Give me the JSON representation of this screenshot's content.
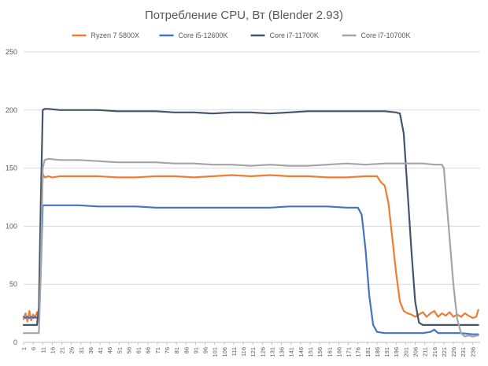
{
  "chart_data": {
    "type": "line",
    "title": "Потребление CPU, Вт (Blender 2.93)",
    "xlabel": "",
    "ylabel": "",
    "ylim": [
      0,
      250
    ],
    "yticks": [
      0,
      50,
      100,
      150,
      200,
      250
    ],
    "x_tick_labels": [
      "1",
      "6",
      "11",
      "16",
      "21",
      "26",
      "31",
      "36",
      "41",
      "46",
      "51",
      "56",
      "61",
      "66",
      "71",
      "76",
      "81",
      "86",
      "91",
      "96",
      "101",
      "106",
      "111",
      "116",
      "121",
      "126",
      "131",
      "136",
      "141",
      "146",
      "151",
      "156",
      "161",
      "166",
      "171",
      "176",
      "181",
      "186",
      "191",
      "196",
      "201",
      "206",
      "211",
      "216",
      "221",
      "226",
      "231",
      "236"
    ],
    "x_range": [
      1,
      240
    ],
    "grid": true,
    "legend_position": "top",
    "series": [
      {
        "name": "Ryzen 7 5800X",
        "color": "#ED7D31",
        "points": [
          [
            1,
            20
          ],
          [
            2,
            25
          ],
          [
            3,
            18
          ],
          [
            4,
            27
          ],
          [
            5,
            19
          ],
          [
            6,
            24
          ],
          [
            7,
            21
          ],
          [
            8,
            26
          ],
          [
            9,
            22
          ],
          [
            10,
            80
          ],
          [
            11,
            145
          ],
          [
            12,
            142
          ],
          [
            14,
            143
          ],
          [
            16,
            142
          ],
          [
            20,
            143
          ],
          [
            30,
            143
          ],
          [
            40,
            143
          ],
          [
            50,
            142
          ],
          [
            60,
            142
          ],
          [
            70,
            143
          ],
          [
            80,
            143
          ],
          [
            90,
            142
          ],
          [
            100,
            143
          ],
          [
            110,
            144
          ],
          [
            120,
            143
          ],
          [
            130,
            144
          ],
          [
            140,
            143
          ],
          [
            150,
            143
          ],
          [
            160,
            142
          ],
          [
            170,
            142
          ],
          [
            180,
            143
          ],
          [
            186,
            143
          ],
          [
            188,
            138
          ],
          [
            190,
            135
          ],
          [
            192,
            120
          ],
          [
            194,
            90
          ],
          [
            196,
            60
          ],
          [
            198,
            35
          ],
          [
            200,
            27
          ],
          [
            202,
            25
          ],
          [
            204,
            24
          ],
          [
            206,
            22
          ],
          [
            208,
            24
          ],
          [
            210,
            26
          ],
          [
            212,
            22
          ],
          [
            214,
            25
          ],
          [
            216,
            27
          ],
          [
            218,
            22
          ],
          [
            220,
            25
          ],
          [
            222,
            23
          ],
          [
            224,
            26
          ],
          [
            226,
            22
          ],
          [
            228,
            24
          ],
          [
            230,
            22
          ],
          [
            232,
            25
          ],
          [
            234,
            23
          ],
          [
            236,
            21
          ],
          [
            238,
            22
          ],
          [
            239,
            28
          ]
        ]
      },
      {
        "name": "Core i5-12600K",
        "color": "#4472C4",
        "points": [
          [
            1,
            22
          ],
          [
            2,
            21
          ],
          [
            3,
            22
          ],
          [
            4,
            21
          ],
          [
            5,
            22
          ],
          [
            6,
            21
          ],
          [
            7,
            22
          ],
          [
            8,
            21
          ],
          [
            9,
            22
          ],
          [
            10,
            60
          ],
          [
            11,
            118
          ],
          [
            14,
            118
          ],
          [
            20,
            118
          ],
          [
            30,
            118
          ],
          [
            40,
            117
          ],
          [
            50,
            117
          ],
          [
            60,
            117
          ],
          [
            70,
            116
          ],
          [
            80,
            116
          ],
          [
            90,
            116
          ],
          [
            100,
            116
          ],
          [
            110,
            116
          ],
          [
            120,
            116
          ],
          [
            130,
            116
          ],
          [
            140,
            117
          ],
          [
            150,
            117
          ],
          [
            160,
            117
          ],
          [
            170,
            116
          ],
          [
            176,
            116
          ],
          [
            178,
            110
          ],
          [
            180,
            80
          ],
          [
            182,
            40
          ],
          [
            184,
            15
          ],
          [
            186,
            9
          ],
          [
            190,
            8
          ],
          [
            200,
            8
          ],
          [
            210,
            8
          ],
          [
            214,
            9
          ],
          [
            216,
            11
          ],
          [
            218,
            8
          ],
          [
            220,
            8
          ],
          [
            230,
            8
          ],
          [
            236,
            7
          ],
          [
            239,
            7
          ]
        ]
      },
      {
        "name": "Core i7-11700K",
        "color": "#44546A",
        "points": [
          [
            1,
            15
          ],
          [
            3,
            15
          ],
          [
            5,
            15
          ],
          [
            7,
            15
          ],
          [
            8,
            15
          ],
          [
            9,
            30
          ],
          [
            10,
            120
          ],
          [
            11,
            200
          ],
          [
            12,
            201
          ],
          [
            14,
            201
          ],
          [
            20,
            200
          ],
          [
            30,
            200
          ],
          [
            40,
            200
          ],
          [
            50,
            199
          ],
          [
            60,
            199
          ],
          [
            70,
            199
          ],
          [
            80,
            198
          ],
          [
            90,
            198
          ],
          [
            100,
            197
          ],
          [
            110,
            198
          ],
          [
            120,
            198
          ],
          [
            130,
            197
          ],
          [
            140,
            198
          ],
          [
            150,
            199
          ],
          [
            160,
            199
          ],
          [
            170,
            199
          ],
          [
            180,
            199
          ],
          [
            190,
            199
          ],
          [
            196,
            198
          ],
          [
            198,
            197
          ],
          [
            200,
            180
          ],
          [
            202,
            130
          ],
          [
            204,
            80
          ],
          [
            206,
            35
          ],
          [
            208,
            17
          ],
          [
            210,
            15
          ],
          [
            220,
            15
          ],
          [
            230,
            15
          ],
          [
            239,
            15
          ]
        ]
      },
      {
        "name": "Core i7-10700K",
        "color": "#A5A5A5",
        "points": [
          [
            1,
            8
          ],
          [
            3,
            8
          ],
          [
            5,
            8
          ],
          [
            7,
            8
          ],
          [
            9,
            8
          ],
          [
            10,
            60
          ],
          [
            11,
            150
          ],
          [
            12,
            157
          ],
          [
            14,
            158
          ],
          [
            20,
            157
          ],
          [
            30,
            157
          ],
          [
            40,
            156
          ],
          [
            50,
            155
          ],
          [
            60,
            155
          ],
          [
            70,
            155
          ],
          [
            80,
            154
          ],
          [
            90,
            154
          ],
          [
            100,
            153
          ],
          [
            110,
            153
          ],
          [
            120,
            152
          ],
          [
            130,
            153
          ],
          [
            140,
            152
          ],
          [
            150,
            152
          ],
          [
            160,
            153
          ],
          [
            170,
            154
          ],
          [
            180,
            153
          ],
          [
            190,
            154
          ],
          [
            200,
            154
          ],
          [
            210,
            154
          ],
          [
            216,
            153
          ],
          [
            220,
            153
          ],
          [
            221,
            150
          ],
          [
            222,
            130
          ],
          [
            224,
            90
          ],
          [
            226,
            50
          ],
          [
            228,
            20
          ],
          [
            230,
            8
          ],
          [
            232,
            5
          ],
          [
            234,
            6
          ],
          [
            236,
            5
          ],
          [
            239,
            6
          ]
        ]
      }
    ]
  }
}
